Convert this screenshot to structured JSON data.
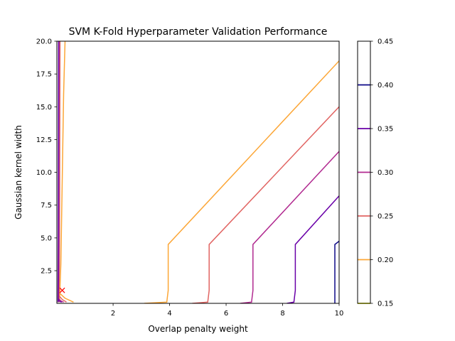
{
  "chart_data": {
    "type": "contour",
    "title": "SVM K-Fold Hyperparameter Validation Performance",
    "xlabel": "Overlap penalty weight",
    "ylabel": "Gaussian kernel width",
    "xlim": [
      0.01,
      10
    ],
    "ylim": [
      0.01,
      20
    ],
    "x_ticks": [
      2,
      4,
      6,
      8,
      10
    ],
    "x_tick_labels": [
      "2",
      "4",
      "6",
      "8",
      "10"
    ],
    "y_ticks": [
      2.5,
      5.0,
      7.5,
      10.0,
      12.5,
      15.0,
      17.5,
      20.0
    ],
    "y_tick_labels": [
      "2.5",
      "5.0",
      "7.5",
      "10.0",
      "12.5",
      "15.0",
      "17.5",
      "20.0"
    ],
    "grid": false,
    "colorbar": {
      "levels": [
        0.15,
        0.2,
        0.25,
        0.3,
        0.35,
        0.4,
        0.45
      ],
      "labels": [
        "0.15",
        "0.20",
        "0.25",
        "0.30",
        "0.35",
        "0.40",
        "0.45"
      ],
      "colors": [
        "#f0f921",
        "#fca636",
        "#e16462",
        "#b12a90",
        "#6a00a8",
        "#0d0887"
      ]
    },
    "contour_lines": [
      {
        "level": 0.2,
        "color": "#fca636",
        "paths": [
          [
            [
              0.1,
              0.1
            ],
            [
              0.15,
              3.0
            ],
            [
              0.25,
              16.0
            ],
            [
              0.3,
              20.0
            ]
          ],
          [
            [
              0.1,
              0.8
            ],
            [
              0.3,
              0.4
            ],
            [
              0.6,
              0.1
            ]
          ],
          [
            [
              3.1,
              0.01
            ],
            [
              3.9,
              0.1
            ],
            [
              3.95,
              1.0
            ],
            [
              3.95,
              4.5
            ],
            [
              10.0,
              18.5
            ]
          ]
        ]
      },
      {
        "level": 0.25,
        "color": "#e16462",
        "paths": [
          [
            [
              0.08,
              0.1
            ],
            [
              0.1,
              3.0
            ],
            [
              0.12,
              20.0
            ]
          ],
          [
            [
              0.08,
              0.6
            ],
            [
              0.2,
              0.3
            ],
            [
              0.35,
              0.1
            ]
          ],
          [
            [
              4.8,
              0.01
            ],
            [
              5.35,
              0.1
            ],
            [
              5.4,
              1.0
            ],
            [
              5.4,
              4.5
            ],
            [
              10.0,
              15.0
            ]
          ]
        ]
      },
      {
        "level": 0.3,
        "color": "#b12a90",
        "paths": [
          [
            [
              0.06,
              0.1
            ],
            [
              0.08,
              5.0
            ],
            [
              0.09,
              20.0
            ]
          ],
          [
            [
              0.06,
              0.4
            ],
            [
              0.15,
              0.2
            ],
            [
              0.25,
              0.1
            ]
          ],
          [
            [
              6.5,
              0.01
            ],
            [
              6.9,
              0.1
            ],
            [
              6.95,
              1.0
            ],
            [
              6.95,
              4.5
            ],
            [
              10.0,
              11.6
            ]
          ]
        ]
      },
      {
        "level": 0.35,
        "color": "#6a00a8",
        "paths": [
          [
            [
              0.05,
              0.1
            ],
            [
              0.06,
              5.0
            ],
            [
              0.07,
              20.0
            ]
          ],
          [
            [
              0.05,
              0.3
            ],
            [
              0.12,
              0.15
            ],
            [
              0.18,
              0.1
            ]
          ],
          [
            [
              8.15,
              0.01
            ],
            [
              8.4,
              0.1
            ],
            [
              8.45,
              1.0
            ],
            [
              8.45,
              4.5
            ],
            [
              10.0,
              8.2
            ]
          ]
        ]
      },
      {
        "level": 0.4,
        "color": "#0d0887",
        "paths": [
          [
            [
              9.85,
              0.01
            ],
            [
              9.85,
              4.5
            ],
            [
              10.0,
              4.75
            ]
          ]
        ]
      }
    ],
    "marker": {
      "symbol": "x",
      "color": "#ff0000",
      "x": 0.2,
      "y": 1.0
    }
  }
}
